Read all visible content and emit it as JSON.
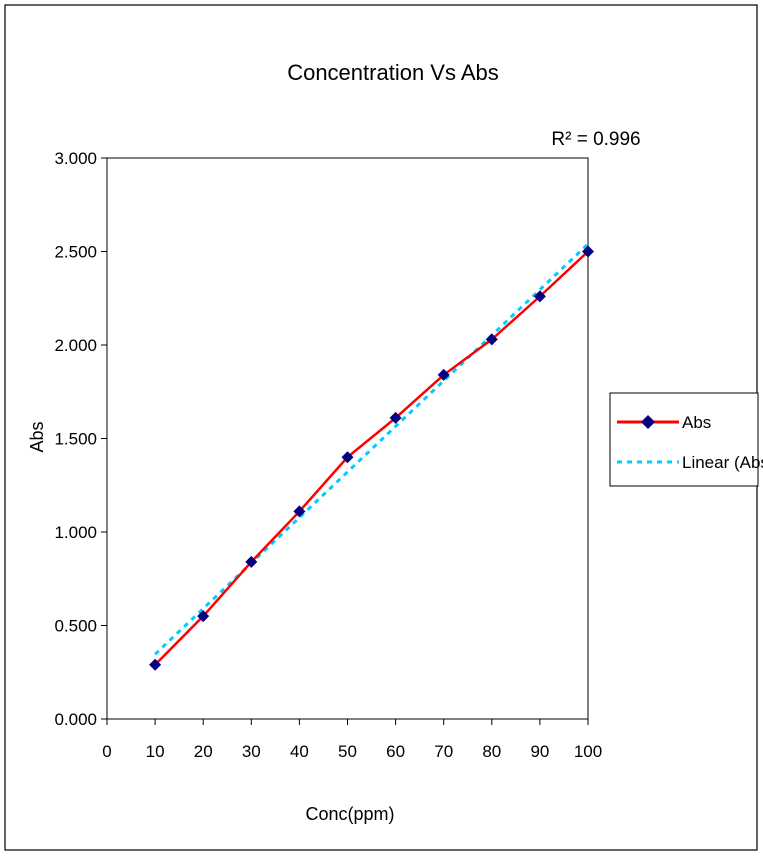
{
  "chart_data": {
    "type": "line",
    "title": "Concentration Vs Abs",
    "xlabel": "Conc(ppm)",
    "ylabel": "Abs",
    "x": [
      10,
      20,
      30,
      40,
      50,
      60,
      70,
      80,
      90,
      100
    ],
    "xlim": [
      0,
      100
    ],
    "xticks": [
      "0",
      "10",
      "20",
      "30",
      "40",
      "50",
      "60",
      "70",
      "80",
      "90",
      "100"
    ],
    "ylim": [
      0,
      3
    ],
    "yticks": [
      "0.000",
      "0.500",
      "1.000",
      "1.500",
      "2.000",
      "2.500",
      "3.000"
    ],
    "grid": false,
    "legend_position": "right",
    "series": [
      {
        "name": "Abs",
        "values": [
          0.29,
          0.55,
          0.84,
          1.11,
          1.4,
          1.61,
          1.84,
          2.03,
          2.26,
          2.5
        ],
        "color": "#ff0000",
        "marker_color": "#000080",
        "marker": "diamond"
      },
      {
        "name": "Linear (Abs)",
        "trendline_of": "Abs",
        "style": "dotted",
        "color": "#00ccff"
      }
    ],
    "annotations": [
      {
        "text": "R² = 0.996"
      }
    ]
  }
}
